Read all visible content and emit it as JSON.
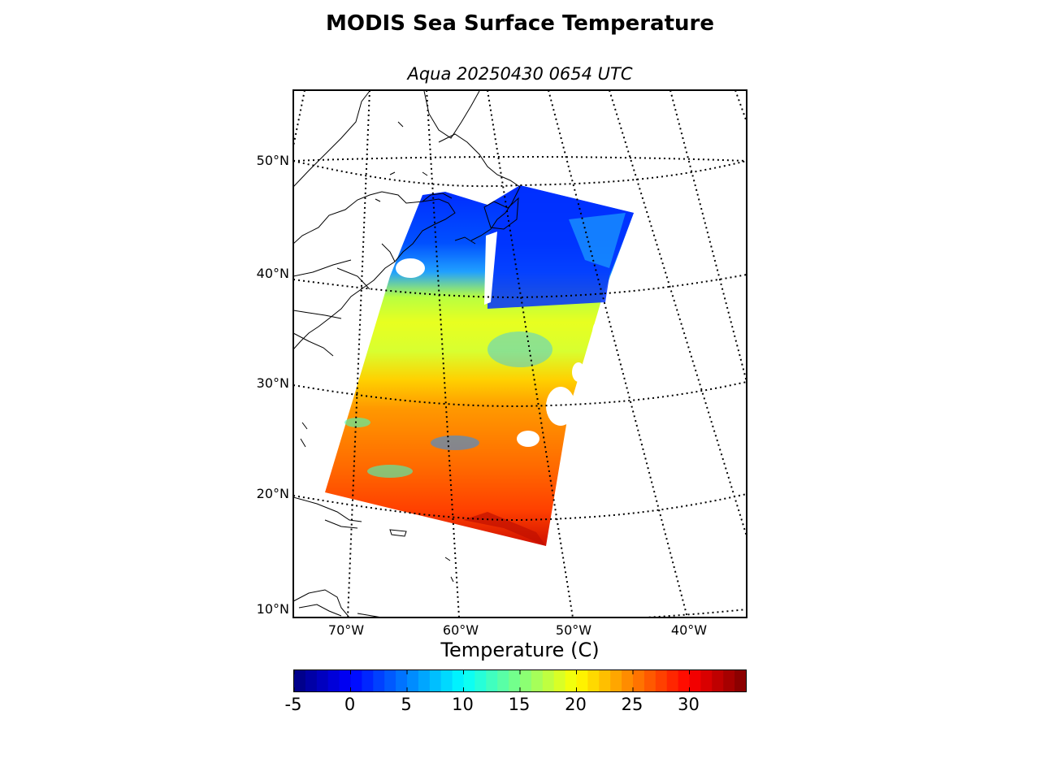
{
  "title": "MODIS Sea Surface Temperature",
  "subtitle": "Aqua 20250430 0654 UTC",
  "map": {
    "lat_labels": [
      "50°N",
      "40°N",
      "30°N",
      "20°N",
      "10°N"
    ],
    "lon_labels": [
      "70°W",
      "60°W",
      "50°W",
      "40°W"
    ],
    "graticule_style": "dotted",
    "colors": {
      "land_outline": "#000000",
      "background": "#ffffff",
      "cold": "#0000ff",
      "warm": "#ff4000"
    }
  },
  "colorbar": {
    "label": "Temperature (C)",
    "colormap": "jet",
    "range": [
      -5,
      35
    ],
    "tick_labels": [
      "-5",
      "0",
      "5",
      "10",
      "15",
      "20",
      "25",
      "30"
    ]
  }
}
